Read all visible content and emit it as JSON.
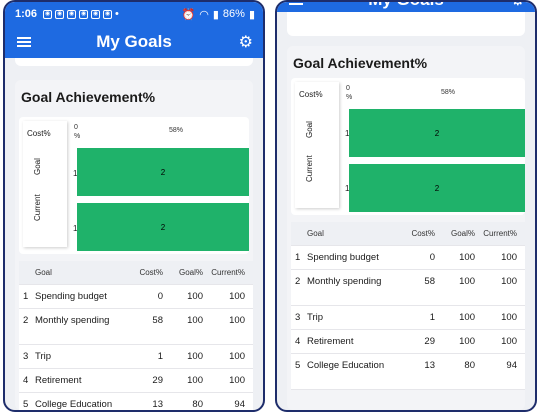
{
  "status": {
    "time": "1:06",
    "battery": "86%"
  },
  "app": {
    "title": "My Goals"
  },
  "card": {
    "title": "Goal Achievement%"
  },
  "chart_data": {
    "type": "bar",
    "orientation": "horizontal",
    "legend_header": "Cost%",
    "categories": [
      "Goal",
      "Current"
    ],
    "series": [
      {
        "values": [
          2,
          2
        ]
      }
    ],
    "axis_ticks": [
      "0 %",
      "58%"
    ],
    "bar_labels": [
      "2",
      "2"
    ],
    "row_labels": [
      "1",
      "1"
    ]
  },
  "table": {
    "headers": [
      "",
      "Goal",
      "Cost%",
      "Goal%",
      "Current%"
    ],
    "rows": [
      [
        "1",
        "Spending budget",
        "0",
        "100",
        "100"
      ],
      [
        "2",
        "Monthly spending",
        "58",
        "100",
        "100"
      ],
      [
        "3",
        "Trip",
        "1",
        "100",
        "100"
      ],
      [
        "4",
        "Retirement",
        "29",
        "100",
        "100"
      ],
      [
        "5",
        "College Education",
        "13",
        "80",
        "94"
      ]
    ]
  }
}
